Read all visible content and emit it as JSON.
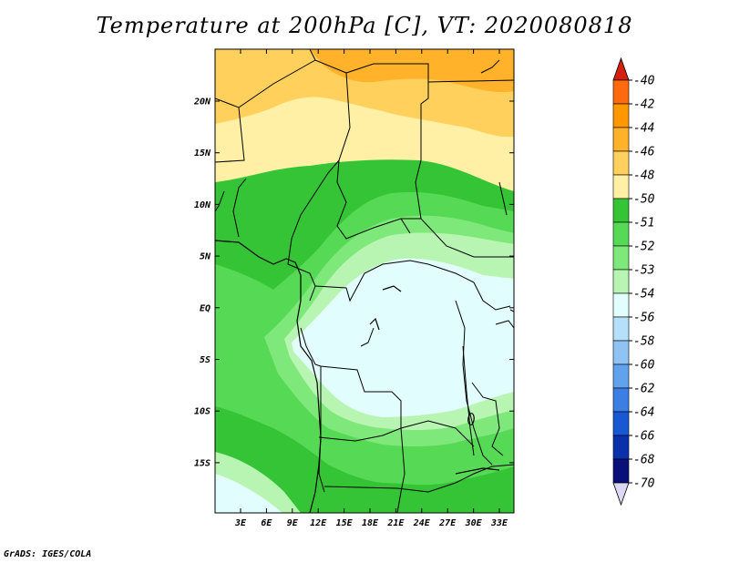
{
  "title": "Temperature at 200hPa [C], VT: 2020080818",
  "footer": "GrADS: IGES/COLA",
  "lat_labels": [
    "20N",
    "15N",
    "10N",
    "5N",
    "EQ",
    "5S",
    "10S",
    "15S"
  ],
  "lon_labels": [
    "3E",
    "6E",
    "9E",
    "12E",
    "15E",
    "18E",
    "21E",
    "24E",
    "27E",
    "30E",
    "33E"
  ],
  "colorbar": {
    "labels": [
      "-40",
      "-42",
      "-44",
      "-46",
      "-48",
      "-50",
      "-51",
      "-52",
      "-53",
      "-54",
      "-56",
      "-58",
      "-60",
      "-62",
      "-64",
      "-66",
      "-68",
      "-70"
    ],
    "colors": [
      "#ff3a1c",
      "#ff6a0e",
      "#ff9800",
      "#ffb22a",
      "#ffd05c",
      "#fff0a6",
      "#35c435",
      "#56da56",
      "#7ee87a",
      "#b8f5b2",
      "#e2fdfd",
      "#b4e0fa",
      "#8ec3f4",
      "#60a2ec",
      "#3b7ee4",
      "#1858d2",
      "#0a30ac",
      "#08107a"
    ],
    "top_arrow_color": "#d42010",
    "bottom_arrow_color": "#ddd8f4"
  }
}
